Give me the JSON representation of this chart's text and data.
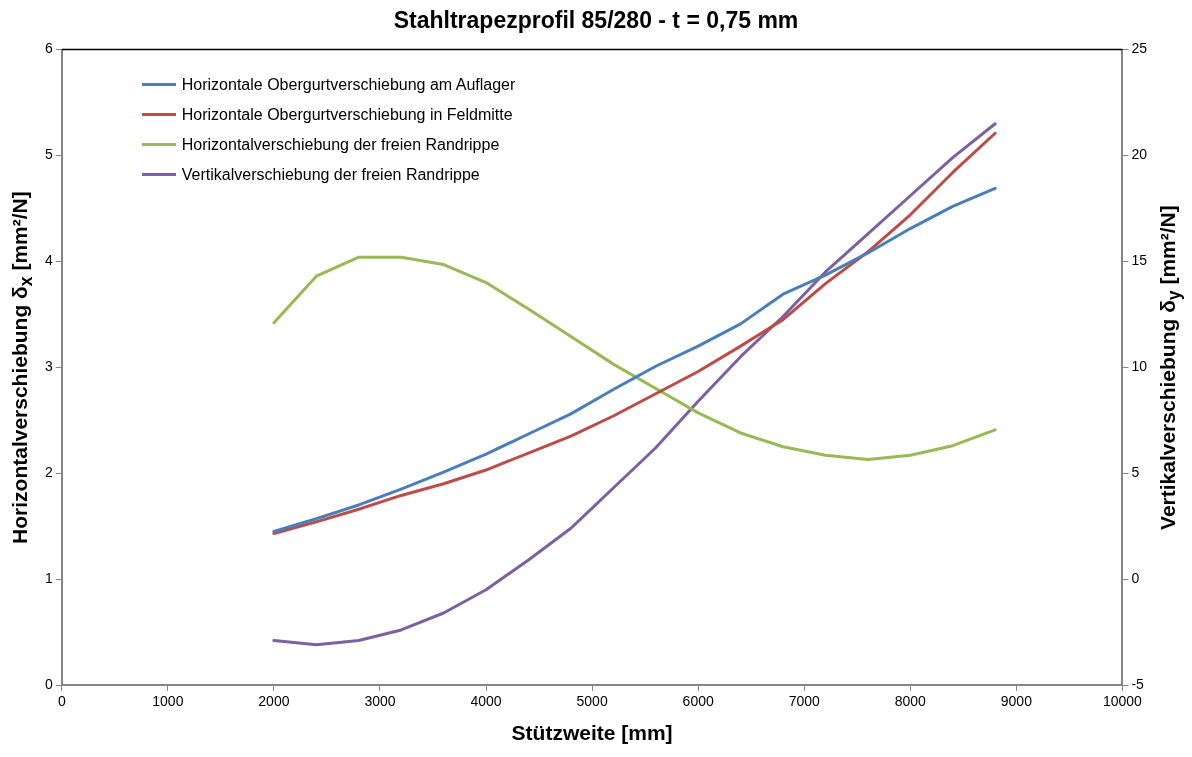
{
  "chart_data": {
    "type": "line",
    "title": "Stahltrapezprofil 85/280 - t = 0,75 mm",
    "xlabel": "Stützweite [mm]",
    "ylabel": "Horizontalverschiebung δ$_{x}$ [mm²/N]",
    "y2label": "Vertikalverschiebung δ$_{y}$ [mm²/N]",
    "x": [
      2000,
      2400,
      2800,
      3200,
      3600,
      4000,
      4400,
      4800,
      5200,
      5600,
      6000,
      6400,
      6800,
      7200,
      7600,
      8000,
      8400,
      8800
    ],
    "series": [
      {
        "name": "Horizontale Obergurtverschiebung am Auflager",
        "color": "#4a7ebb",
        "values": [
          1.45,
          1.57,
          1.7,
          1.85,
          2.01,
          2.18,
          2.37,
          2.56,
          2.79,
          3.01,
          3.2,
          3.41,
          3.69,
          3.87,
          4.08,
          4.31,
          4.52,
          4.69
        ]
      },
      {
        "name": "Horizontale Obergurtverschiebung in Feldmitte",
        "color": "#be4b48",
        "values": [
          1.43,
          1.54,
          1.66,
          1.79,
          1.9,
          2.03,
          2.19,
          2.35,
          2.54,
          2.75,
          2.96,
          3.2,
          3.45,
          3.79,
          4.09,
          4.44,
          4.84,
          5.21
        ]
      },
      {
        "name": "Horizontalverschiebung der freien Randrippe",
        "color": "#98b954",
        "values": [
          3.42,
          3.86,
          4.04,
          4.04,
          3.97,
          3.8,
          3.55,
          3.29,
          3.03,
          2.8,
          2.57,
          2.38,
          2.25,
          2.17,
          2.13,
          2.17,
          2.26,
          2.41
        ]
      },
      {
        "name": "Vertikalverschiebung der freien Randrippe",
        "color": "#7d60a0",
        "axis": "y2",
        "values": [
          -2.9,
          -3.1,
          -2.9,
          -2.4,
          -1.6,
          -0.5,
          0.9,
          2.4,
          4.3,
          6.2,
          8.4,
          10.5,
          12.4,
          14.5,
          16.3,
          18.1,
          19.9,
          21.5
        ]
      }
    ],
    "xlim": [
      0,
      10000
    ],
    "xticks": [
      0,
      1000,
      2000,
      3000,
      4000,
      5000,
      6000,
      7000,
      8000,
      9000,
      10000
    ],
    "ylim": [
      0,
      6
    ],
    "yticks": [
      0,
      1,
      2,
      3,
      4,
      5,
      6
    ],
    "y2lim": [
      -5,
      25
    ],
    "y2ticks": [
      -5,
      0,
      5,
      10,
      15,
      20,
      25
    ],
    "grid": false,
    "legend": "top left",
    "marker": "none",
    "line_style": "solid"
  }
}
